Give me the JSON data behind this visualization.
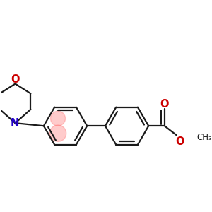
{
  "bg_color": "#ffffff",
  "bond_color": "#1a1a1a",
  "N_color": "#2200cc",
  "O_color": "#cc0000",
  "highlight_color": "#ff7777",
  "highlight_alpha": 0.38,
  "lw": 1.6,
  "r_ring": 0.38,
  "figsize": [
    3.0,
    3.0
  ],
  "dpi": 100,
  "xlim": [
    -0.05,
    3.05
  ],
  "ylim": [
    -0.75,
    1.45
  ]
}
